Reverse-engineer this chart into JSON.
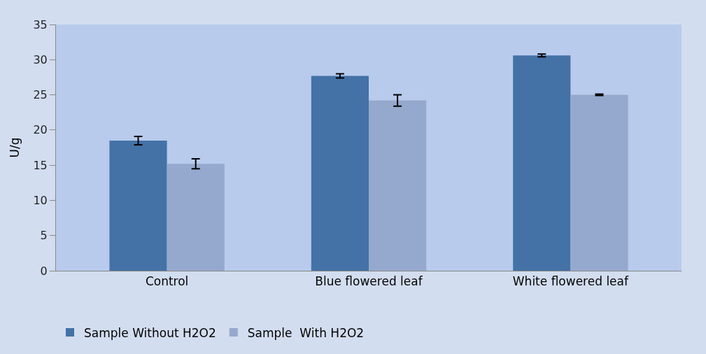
{
  "chart_data": {
    "type": "bar",
    "ylabel": "U/g",
    "categories": [
      "Control",
      "Blue flowered leaf",
      "White flowered leaf"
    ],
    "series": [
      {
        "name": "Sample Without H2O2",
        "color": "#4472a7",
        "values": [
          18.5,
          27.7,
          30.6
        ],
        "errors": [
          0.6,
          0.3,
          0.2
        ]
      },
      {
        "name": "Sample  With H2O2",
        "color": "#95a9cf",
        "values": [
          15.2,
          24.2,
          25.0
        ],
        "errors": [
          0.7,
          0.8,
          0.1
        ]
      }
    ],
    "ylim": [
      0,
      35
    ],
    "yticks": [
      0,
      5,
      10,
      15,
      20,
      25,
      30,
      35
    ],
    "grid": false,
    "legend": "bottom"
  }
}
